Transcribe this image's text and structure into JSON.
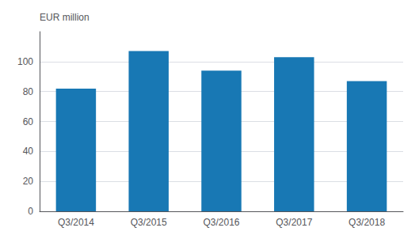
{
  "chart_data": {
    "type": "bar",
    "ylabel": "EUR million",
    "categories": [
      "Q3/2014",
      "Q3/2015",
      "Q3/2016",
      "Q3/2017",
      "Q3/2018"
    ],
    "values": [
      82,
      107,
      94,
      103,
      87
    ],
    "color": "#1878b4",
    "ylim": [
      0,
      120
    ],
    "yticks": [
      0,
      20,
      40,
      60,
      80,
      100
    ],
    "grid": true
  }
}
